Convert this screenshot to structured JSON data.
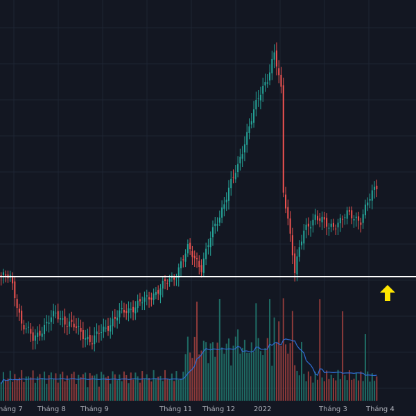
{
  "colors": {
    "background": "#131722",
    "grid": "#1e2433",
    "up": "#26a69a",
    "down": "#ef5350",
    "volume_up": "#1f6b64",
    "volume_down": "#8c3a3a",
    "volume_ma": "#2f6fd6",
    "support_line": "#ffffff",
    "arrow": "#ffe600",
    "tick_text": "#b2b5be"
  },
  "chart_data": {
    "type": "candlestick",
    "x_tick_labels": [
      "háng 7",
      "Tháng 8",
      "Tháng 9",
      "Tháng 11",
      "Tháng 12",
      "2022",
      "Tháng 3",
      "Tháng 4"
    ],
    "close_anchors": [
      {
        "bar": 0,
        "value": 1.0
      },
      {
        "bar": 4,
        "value": 0.99
      },
      {
        "bar": 9,
        "value": 0.7
      },
      {
        "bar": 14,
        "value": 0.62
      },
      {
        "bar": 24,
        "value": 0.75
      },
      {
        "bar": 32,
        "value": 0.68
      },
      {
        "bar": 40,
        "value": 0.61
      },
      {
        "bar": 52,
        "value": 0.75
      },
      {
        "bar": 64,
        "value": 0.84
      },
      {
        "bar": 76,
        "value": 1.0
      },
      {
        "bar": 82,
        "value": 1.23
      },
      {
        "bar": 88,
        "value": 1.08
      },
      {
        "bar": 96,
        "value": 1.6
      },
      {
        "bar": 104,
        "value": 2.3
      },
      {
        "bar": 112,
        "value": 3.7
      },
      {
        "bar": 117,
        "value": 4.6
      },
      {
        "bar": 120,
        "value": 5.5
      },
      {
        "bar": 123,
        "value": 4.1
      },
      {
        "bar": 124,
        "value": 1.9
      },
      {
        "bar": 129,
        "value": 1.05
      },
      {
        "bar": 133,
        "value": 1.4
      },
      {
        "bar": 138,
        "value": 1.6
      },
      {
        "bar": 144,
        "value": 1.45
      },
      {
        "bar": 152,
        "value": 1.6
      },
      {
        "bar": 158,
        "value": 1.55
      },
      {
        "bar": 161,
        "value": 1.75
      },
      {
        "bar": 165,
        "value": 2.0
      }
    ],
    "bar_count": 166,
    "support_level": 1.0,
    "volume_peak_bars": [
      86,
      96,
      104,
      110,
      112,
      118,
      120,
      122,
      124,
      128,
      132,
      140,
      150,
      160
    ],
    "volume_scale": "relative"
  }
}
